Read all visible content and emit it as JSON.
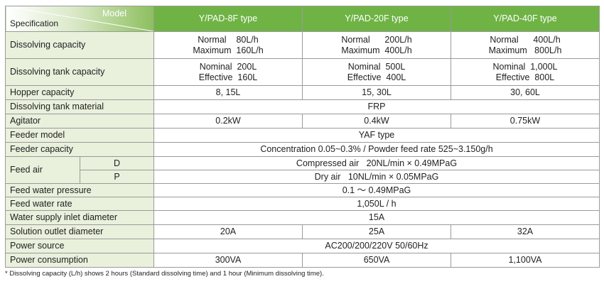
{
  "header": {
    "model": "Model",
    "specification": "Specification",
    "types": [
      "Y/PAD-8F type",
      "Y/PAD-20F type",
      "Y/PAD-40F type"
    ]
  },
  "rows": {
    "dissolving_capacity": {
      "label": "Dissolving capacity",
      "values": [
        [
          "Normal    80L/h",
          "Maximum  160L/h"
        ],
        [
          "Normal      200L/h",
          "Maximum  400L/h"
        ],
        [
          "Normal      400L/h",
          "Maximum   800L/h"
        ]
      ]
    },
    "tank_capacity": {
      "label": "Dissolving tank capacity",
      "values": [
        [
          "Nominal  200L",
          "Effective  160L"
        ],
        [
          "Nominal  500L",
          "Effective  400L"
        ],
        [
          "Nominal  1,000L",
          "Effective  800L"
        ]
      ]
    },
    "hopper_capacity": {
      "label": "Hopper capacity",
      "values": [
        "8, 15L",
        "15, 30L",
        "30, 60L"
      ]
    },
    "tank_material": {
      "label": "Dissolving tank material",
      "value": "FRP"
    },
    "agitator": {
      "label": "Agitator",
      "values": [
        "0.2kW",
        "0.4kW",
        "0.75kW"
      ]
    },
    "feeder_model": {
      "label": "Feeder model",
      "value": "YAF type"
    },
    "feeder_capacity": {
      "label": "Feeder capacity",
      "value": "Concentration 0.05~0.3% / Powder feed rate 525~3.150g/h"
    },
    "feed_air": {
      "label": "Feed air",
      "d_label": "D",
      "d_value": "Compressed air   20NL/min × 0.49MPaG",
      "p_label": "P",
      "p_value": "Dry air   10NL/min × 0.05MPaG"
    },
    "feed_water_pressure": {
      "label": "Feed water pressure",
      "value": "0.1 ～ 0.49MPaG"
    },
    "feed_water_rate": {
      "label": "Feed water rate",
      "value": "1,050L / h"
    },
    "water_inlet": {
      "label": "Water supply inlet diameter",
      "value": "15A"
    },
    "solution_outlet": {
      "label": "Solution outlet diameter",
      "values": [
        "20A",
        "25A",
        "32A"
      ]
    },
    "power_source": {
      "label": "Power source",
      "value": "AC200/200/220V 50/60Hz"
    },
    "power_consumption": {
      "label": "Power consumption",
      "values": [
        "300VA",
        "650VA",
        "1,100VA"
      ]
    }
  },
  "footnote": "* Dissolving capacity (L/h) shows 2 hours (Standard dissolving time) and 1 hour (Minimum dissolving time)."
}
